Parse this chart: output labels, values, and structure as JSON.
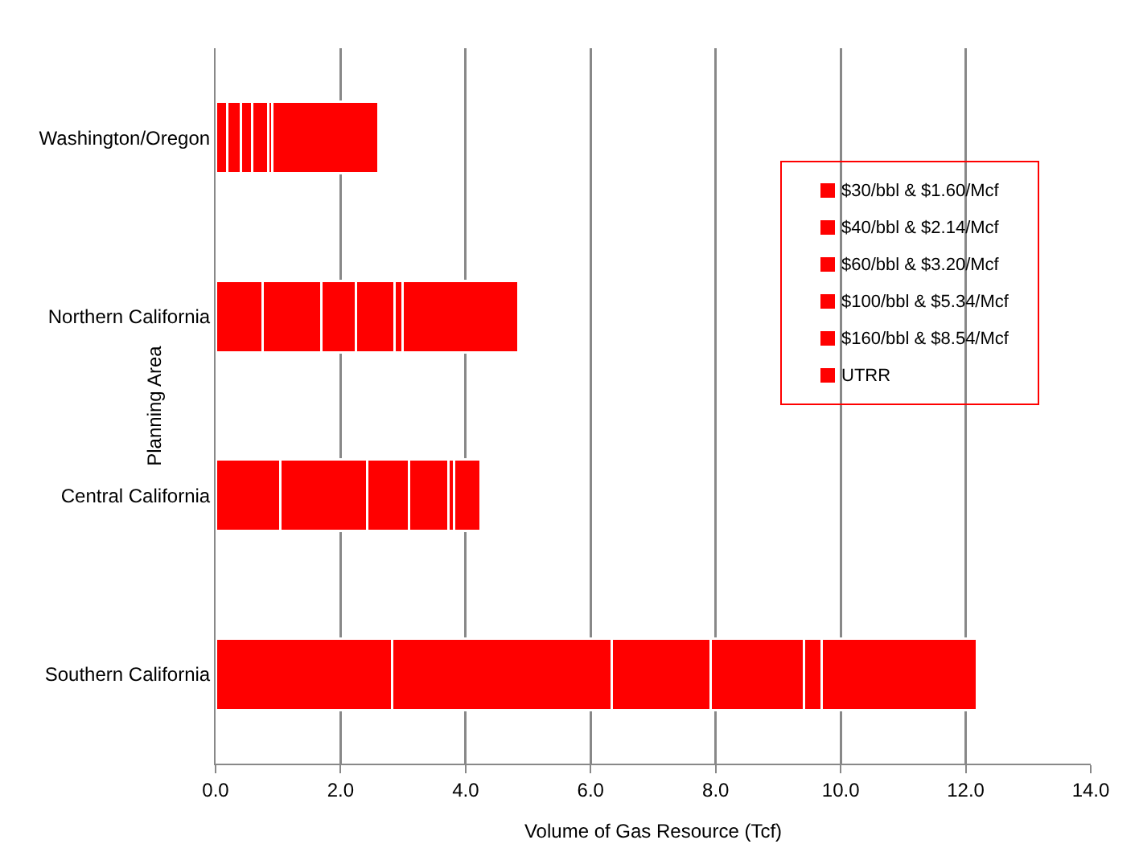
{
  "chart_data": {
    "type": "bar",
    "orientation": "horizontal",
    "stacked": true,
    "xlabel": "Volume of Gas Resource (Tcf)",
    "ylabel": "Planning Area",
    "categories": [
      "Washington/Oregon",
      "Northern California",
      "Central California",
      "Southern California"
    ],
    "series": [
      {
        "name": "$30/bbl & $1.60/Mcf",
        "color": "#ff0000",
        "values": [
          0.19,
          0.75,
          1.03,
          2.83
        ]
      },
      {
        "name": "$40/bbl & $2.14/Mcf",
        "color": "#ff0000",
        "values": [
          0.21,
          0.94,
          1.39,
          3.51
        ]
      },
      {
        "name": "$60/bbl & $3.20/Mcf",
        "color": "#ff0000",
        "values": [
          0.18,
          0.56,
          0.68,
          1.58
        ]
      },
      {
        "name": "$100/bbl & $5.34/Mcf",
        "color": "#ff0000",
        "values": [
          0.26,
          0.61,
          0.63,
          1.49
        ]
      },
      {
        "name": "$160/bbl & $8.54/Mcf",
        "color": "#ff0000",
        "values": [
          0.07,
          0.13,
          0.09,
          0.29
        ]
      },
      {
        "name": "UTRR",
        "color": "#ff0000",
        "values": [
          1.69,
          1.86,
          0.42,
          2.48
        ]
      }
    ],
    "xlim": [
      0,
      14
    ],
    "xticks": [
      {
        "value": 0,
        "label": "0.0"
      },
      {
        "value": 2,
        "label": "2.0"
      },
      {
        "value": 4,
        "label": "4.0"
      },
      {
        "value": 6,
        "label": "6.0"
      },
      {
        "value": 8,
        "label": "8.0"
      },
      {
        "value": 10,
        "label": "10.0"
      },
      {
        "value": 12,
        "label": "12.0"
      },
      {
        "value": 14,
        "label": "14.0"
      }
    ],
    "grid": "x",
    "legend": "top right"
  }
}
